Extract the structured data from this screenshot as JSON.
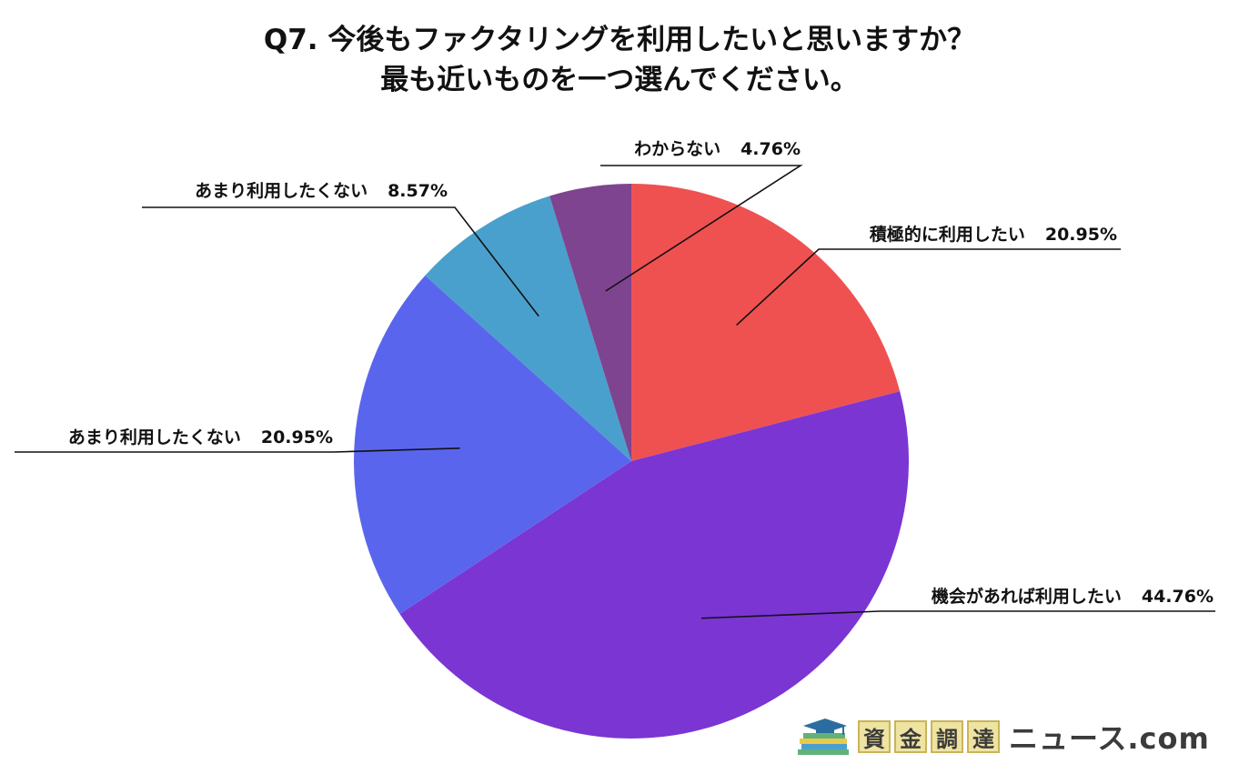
{
  "title": {
    "line1": "Q7. 今後もファクタリングを利用したいと思いますか？",
    "line2": "最も近いものを一つ選んでください。"
  },
  "chart_data": {
    "type": "pie",
    "slices": [
      {
        "label": "積極的に利用したい",
        "pct_text": "20.95%",
        "value": 20.95,
        "color": "#ef5150"
      },
      {
        "label": "機会があれば利用したい",
        "pct_text": "44.76%",
        "value": 44.76,
        "color": "#7b35d3"
      },
      {
        "label": "あまり利用したくない",
        "pct_text": "20.95%",
        "value": 20.95,
        "color": "#5a65ee"
      },
      {
        "label": "あまり利用したくない",
        "pct_text": "8.57%",
        "value": 8.57,
        "color": "#4aa0cc"
      },
      {
        "label": "わからない",
        "pct_text": "4.76%",
        "value": 4.76,
        "color": "#7e448f"
      }
    ],
    "start": "top",
    "direction": "clockwise"
  },
  "logo": {
    "kanji": [
      "資",
      "金",
      "調",
      "達"
    ],
    "rest": "ニュース.com",
    "colors": {
      "kanji_bg": "#efe3a1",
      "text": "#3b3b3b"
    }
  }
}
